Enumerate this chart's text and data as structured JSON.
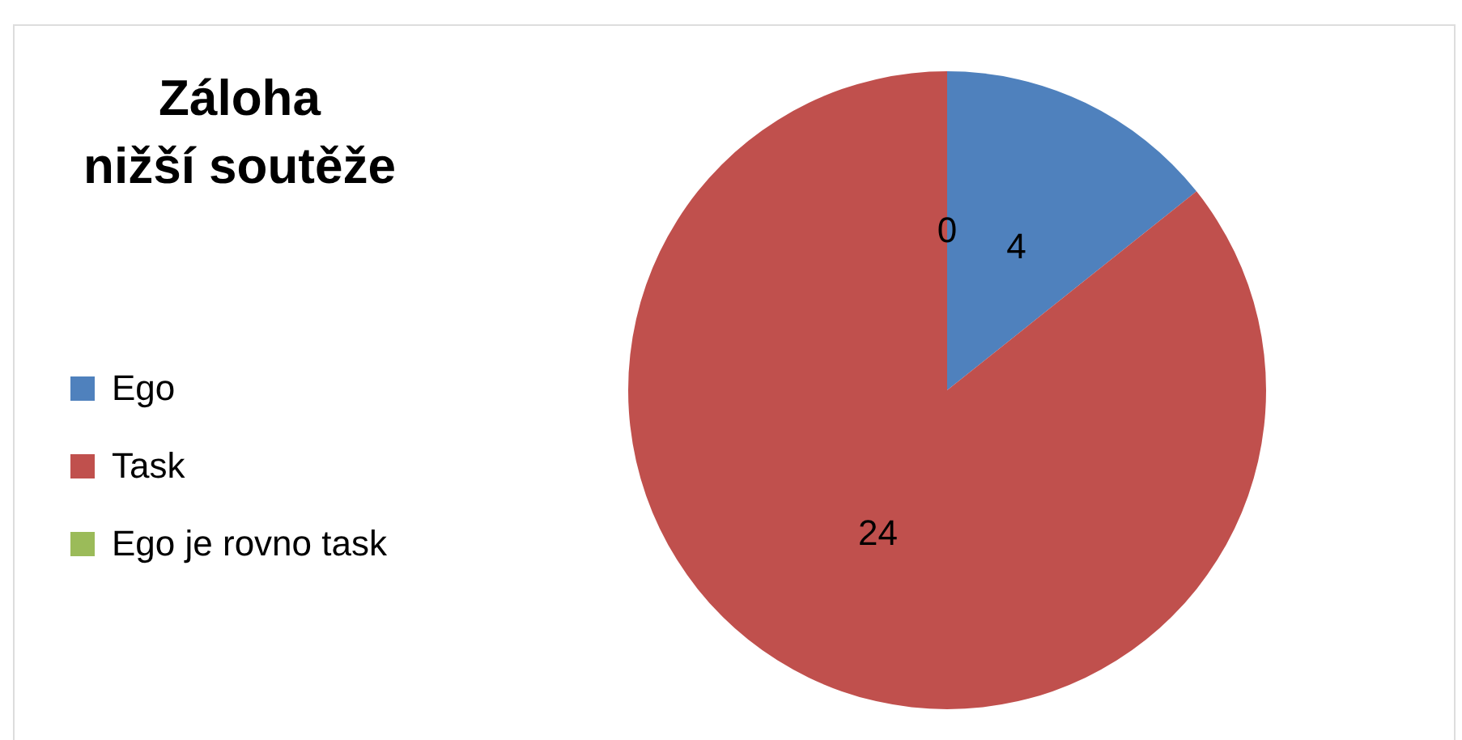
{
  "chart_data": {
    "type": "pie",
    "title": "Záloha nižší soutěže",
    "categories": [
      "Ego",
      "Task",
      "Ego je rovno task"
    ],
    "values": [
      4,
      24,
      0
    ],
    "value_labels": [
      "4",
      "24",
      "0"
    ],
    "colors": [
      "#4f81bd",
      "#c0504d",
      "#9bbb59"
    ],
    "legend": "left"
  }
}
